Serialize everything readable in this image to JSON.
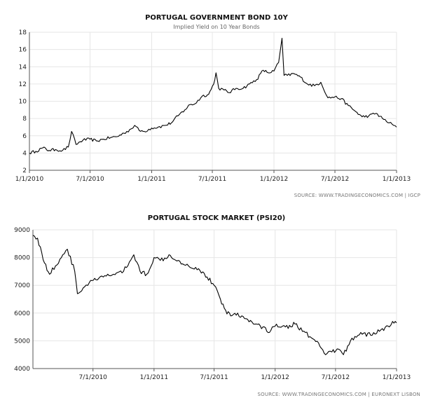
{
  "chart_data": [
    {
      "type": "line",
      "title": "PORTUGAL GOVERNMENT BOND 10Y",
      "subtitle": "Implied Yield on 10 Year Bonds",
      "source": "SOURCE: WWW.TRADINGECONOMICS.COM | IGCP",
      "xlabel": "",
      "ylabel": "",
      "x_ticks": [
        "1/1/2010",
        "7/1/2010",
        "1/1/2011",
        "7/1/2011",
        "1/1/2012",
        "7/1/2012",
        "1/1/2013"
      ],
      "ylim": [
        2,
        18
      ],
      "y_ticks": [
        2,
        4,
        6,
        8,
        10,
        12,
        14,
        16,
        18
      ],
      "grid": true,
      "line_color": "#000000",
      "series": [
        {
          "x": [
            "2010-01-01",
            "2010-01-20",
            "2010-02-10",
            "2010-03-01",
            "2010-03-20",
            "2010-04-10",
            "2010-04-27",
            "2010-05-07",
            "2010-05-20",
            "2010-06-10",
            "2010-07-01",
            "2010-07-20",
            "2010-08-10",
            "2010-09-01",
            "2010-09-20",
            "2010-10-10",
            "2010-11-01",
            "2010-11-11",
            "2010-11-25",
            "2010-12-10",
            "2011-01-01",
            "2011-01-20",
            "2011-02-10",
            "2011-03-01",
            "2011-03-20",
            "2011-04-10",
            "2011-04-25",
            "2011-05-10",
            "2011-06-01",
            "2011-06-20",
            "2011-07-05",
            "2011-07-12",
            "2011-07-20",
            "2011-08-05",
            "2011-08-20",
            "2011-09-10",
            "2011-10-01",
            "2011-10-20",
            "2011-11-10",
            "2011-11-30",
            "2011-12-15",
            "2012-01-01",
            "2012-01-15",
            "2012-01-25",
            "2012-01-31",
            "2012-02-10",
            "2012-03-01",
            "2012-03-20",
            "2012-04-10",
            "2012-05-01",
            "2012-05-20",
            "2012-06-10",
            "2012-07-01",
            "2012-07-20",
            "2012-08-10",
            "2012-09-01",
            "2012-09-20",
            "2012-10-10",
            "2012-11-01",
            "2012-11-20",
            "2012-12-10",
            "2013-01-01"
          ],
          "values": [
            4.0,
            4.2,
            4.6,
            4.3,
            4.4,
            4.3,
            4.7,
            6.5,
            5.0,
            5.5,
            5.6,
            5.4,
            5.6,
            5.8,
            5.9,
            6.3,
            6.8,
            7.2,
            6.6,
            6.5,
            6.9,
            7.0,
            7.2,
            7.5,
            8.3,
            9.0,
            9.6,
            9.7,
            10.6,
            10.8,
            12.0,
            13.3,
            11.5,
            11.3,
            11.0,
            11.5,
            11.5,
            12.0,
            12.5,
            13.6,
            13.3,
            13.5,
            14.5,
            17.3,
            13.0,
            13.0,
            13.2,
            12.8,
            12.0,
            11.8,
            12.2,
            10.4,
            10.5,
            10.3,
            9.5,
            8.8,
            8.2,
            8.3,
            8.6,
            8.0,
            7.5,
            7.0
          ]
        }
      ]
    },
    {
      "type": "line",
      "title": "PORTUGAL STOCK MARKET (PSI20)",
      "source": "SOURCE: WWW.TRADINGECONOMICS.COM | EURONEXT LISBON",
      "xlabel": "",
      "ylabel": "",
      "x_ticks": [
        "7/1/2010",
        "1/1/2011",
        "7/1/2011",
        "1/1/2012",
        "7/1/2012",
        "1/1/2013"
      ],
      "ylim": [
        4000,
        9000
      ],
      "y_ticks": [
        4000,
        5000,
        6000,
        7000,
        8000,
        9000
      ],
      "grid": true,
      "line_color": "#000000",
      "series": [
        {
          "x": [
            "2010-01-01",
            "2010-01-15",
            "2010-02-05",
            "2010-02-20",
            "2010-03-10",
            "2010-04-01",
            "2010-04-15",
            "2010-05-07",
            "2010-05-15",
            "2010-06-01",
            "2010-06-20",
            "2010-07-10",
            "2010-08-01",
            "2010-09-01",
            "2010-10-01",
            "2010-11-01",
            "2010-11-20",
            "2010-12-10",
            "2011-01-01",
            "2011-01-20",
            "2011-02-15",
            "2011-03-15",
            "2011-04-15",
            "2011-05-15",
            "2011-06-10",
            "2011-07-01",
            "2011-07-20",
            "2011-08-05",
            "2011-08-20",
            "2011-09-10",
            "2011-10-01",
            "2011-11-01",
            "2011-11-25",
            "2011-12-15",
            "2012-01-05",
            "2012-02-01",
            "2012-03-01",
            "2012-04-01",
            "2012-04-20",
            "2012-05-15",
            "2012-06-01",
            "2012-06-20",
            "2012-07-10",
            "2012-07-25",
            "2012-08-15",
            "2012-09-15",
            "2012-10-15",
            "2012-11-15",
            "2012-12-10",
            "2012-12-20",
            "2013-01-01"
          ],
          "values": [
            8800,
            8700,
            7800,
            7400,
            7700,
            8100,
            8300,
            7500,
            6700,
            6900,
            7100,
            7200,
            7300,
            7400,
            7500,
            8100,
            7500,
            7400,
            8000,
            7900,
            8100,
            7900,
            7700,
            7600,
            7300,
            7000,
            6500,
            6100,
            5900,
            6000,
            5800,
            5600,
            5500,
            5300,
            5600,
            5500,
            5600,
            5300,
            5100,
            4800,
            4500,
            4600,
            4700,
            4500,
            5000,
            5300,
            5200,
            5400,
            5500,
            5700,
            5650
          ]
        }
      ]
    }
  ]
}
